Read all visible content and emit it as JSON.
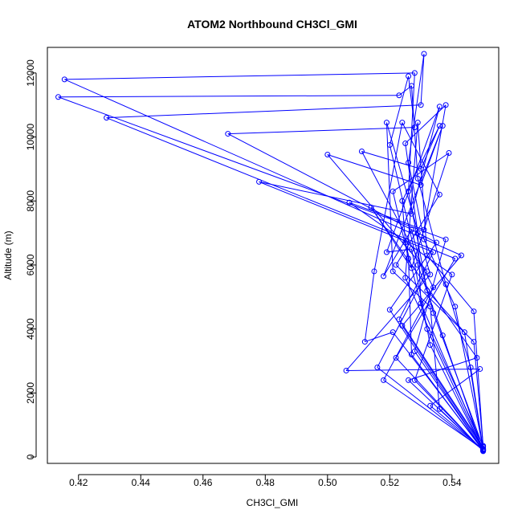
{
  "chart_data": {
    "type": "line",
    "title": "ATOM2 Northbound CH3Cl_GMI",
    "xlabel": "CH3Cl_GMI",
    "ylabel": "Altitude (m)",
    "xlim": [
      0.41,
      0.555
    ],
    "ylim": [
      -200,
      12800
    ],
    "x_ticks": [
      0.42,
      0.44,
      0.46,
      0.48,
      0.5,
      0.52,
      0.54
    ],
    "x_tick_labels": [
      "0.42",
      "0.44",
      "0.46",
      "0.48",
      "0.50",
      "0.52",
      "0.54"
    ],
    "y_ticks": [
      0,
      2000,
      4000,
      6000,
      8000,
      10000,
      12000
    ],
    "y_tick_labels": [
      "0",
      "2000",
      "4000",
      "6000",
      "8000",
      "10000",
      "12000"
    ],
    "grid": false,
    "marker": "open-circle",
    "color": "#0000ff",
    "series": [
      {
        "points": [
          [
            0.55,
            250
          ],
          [
            0.546,
            2800
          ],
          [
            0.538,
            5400
          ],
          [
            0.529,
            8700
          ],
          [
            0.527,
            11600
          ],
          [
            0.523,
            11300
          ],
          [
            0.4135,
            11250
          ],
          [
            0.538,
            6800
          ],
          [
            0.528,
            3300
          ],
          [
            0.55,
            220
          ],
          [
            0.544,
            3900
          ],
          [
            0.532,
            5200
          ],
          [
            0.526,
            8300
          ],
          [
            0.528,
            12000
          ],
          [
            0.4155,
            11800
          ],
          [
            0.543,
            6300
          ],
          [
            0.524,
            4100
          ],
          [
            0.55,
            260
          ],
          [
            0.541,
            4700
          ],
          [
            0.531,
            6800
          ],
          [
            0.526,
            9200
          ],
          [
            0.531,
            12600
          ],
          [
            0.53,
            11000
          ],
          [
            0.429,
            10600
          ],
          [
            0.541,
            6200
          ],
          [
            0.522,
            3100
          ],
          [
            0.55,
            180
          ],
          [
            0.537,
            3800
          ],
          [
            0.529,
            6000
          ],
          [
            0.52,
            9750
          ],
          [
            0.526,
            11900
          ],
          [
            0.528,
            10300
          ],
          [
            0.468,
            10100
          ],
          [
            0.535,
            6700
          ],
          [
            0.52,
            4600
          ],
          [
            0.55,
            200
          ],
          [
            0.533,
            3500
          ],
          [
            0.527,
            6500
          ],
          [
            0.519,
            6400
          ],
          [
            0.536,
            10950
          ],
          [
            0.527,
            7600
          ],
          [
            0.478,
            8600
          ],
          [
            0.534,
            6400
          ],
          [
            0.523,
            4300
          ],
          [
            0.55,
            310
          ],
          [
            0.534,
            4500
          ],
          [
            0.527,
            7100
          ],
          [
            0.518,
            5650
          ],
          [
            0.537,
            10350
          ],
          [
            0.53,
            8500
          ],
          [
            0.5,
            9450
          ],
          [
            0.532,
            5800
          ],
          [
            0.516,
            2800
          ],
          [
            0.55,
            210
          ],
          [
            0.532,
            4000
          ],
          [
            0.525,
            6700
          ],
          [
            0.524,
            8000
          ],
          [
            0.536,
            10350
          ],
          [
            0.53,
            9000
          ],
          [
            0.511,
            9550
          ],
          [
            0.534,
            5300
          ],
          [
            0.518,
            2400
          ],
          [
            0.55,
            240
          ],
          [
            0.53,
            4800
          ],
          [
            0.529,
            7000
          ],
          [
            0.525,
            9800
          ],
          [
            0.538,
            11000
          ],
          [
            0.531,
            7100
          ],
          [
            0.507,
            7950
          ],
          [
            0.54,
            5700
          ],
          [
            0.528,
            2400
          ],
          [
            0.55,
            190
          ],
          [
            0.527,
            3200
          ],
          [
            0.526,
            6200
          ],
          [
            0.521,
            8300
          ],
          [
            0.539,
            9500
          ],
          [
            0.527,
            5900
          ],
          [
            0.514,
            7800
          ],
          [
            0.548,
            3100
          ],
          [
            0.526,
            2400
          ],
          [
            0.55,
            200
          ],
          [
            0.536,
            1500
          ],
          [
            0.533,
            4700
          ],
          [
            0.521,
            5800
          ],
          [
            0.519,
            10450
          ],
          [
            0.533,
            5700
          ],
          [
            0.506,
            2700
          ],
          [
            0.549,
            2750
          ],
          [
            0.533,
            1600
          ],
          [
            0.55,
            230
          ],
          [
            0.521,
            3900
          ],
          [
            0.512,
            3600
          ],
          [
            0.515,
            5800
          ],
          [
            0.524,
            10450
          ],
          [
            0.536,
            8200
          ],
          [
            0.522,
            6000
          ],
          [
            0.547,
            3600
          ],
          [
            0.55,
            350
          ],
          [
            0.525,
            5600
          ],
          [
            0.529,
            10450
          ],
          [
            0.532,
            6300
          ],
          [
            0.547,
            4550
          ],
          [
            0.55,
            320
          ]
        ]
      }
    ]
  }
}
